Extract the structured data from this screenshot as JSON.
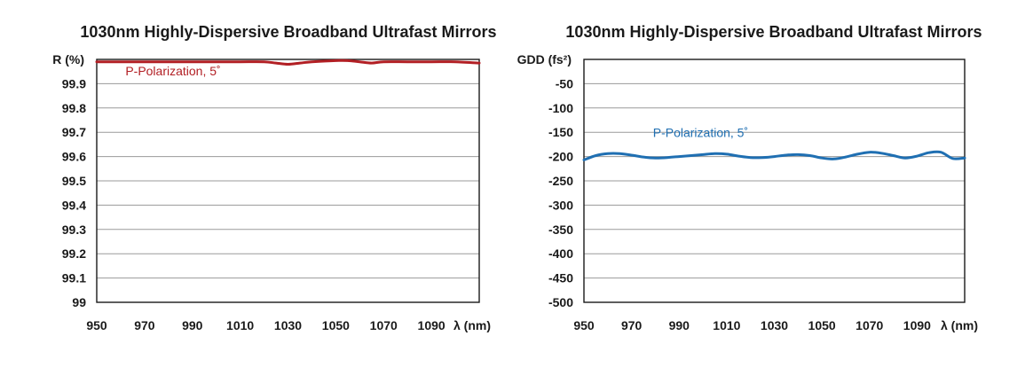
{
  "chart_data": [
    {
      "type": "line",
      "title": "1030nm Highly-Dispersive Broadband Ultrafast Mirrors",
      "ylabel": "R (%)",
      "xlabel": "λ (nm)",
      "xlim": [
        950,
        1110
      ],
      "ylim": [
        99,
        100
      ],
      "x_ticks": [
        "950",
        "970",
        "990",
        "1010",
        "1030",
        "1050",
        "1070",
        "1090"
      ],
      "y_ticks": [
        "99.9",
        "99.8",
        "99.7",
        "99.6",
        "99.5",
        "99.4",
        "99.3",
        "99.2",
        "99.1",
        "99"
      ],
      "grid": "horizontal",
      "series_color": "#b21f24",
      "series": [
        {
          "name": "P-Polarization, 5˚",
          "x": [
            950,
            960,
            970,
            980,
            990,
            1000,
            1010,
            1020,
            1025,
            1030,
            1035,
            1040,
            1050,
            1055,
            1060,
            1065,
            1070,
            1080,
            1090,
            1100,
            1110
          ],
          "y": [
            99.99,
            99.99,
            99.99,
            99.99,
            99.99,
            99.99,
            99.99,
            99.99,
            99.985,
            99.98,
            99.985,
            99.99,
            99.995,
            99.995,
            99.99,
            99.985,
            99.99,
            99.99,
            99.99,
            99.99,
            99.985
          ]
        }
      ]
    },
    {
      "type": "line",
      "title": "1030nm Highly-Dispersive Broadband Ultrafast Mirrors",
      "ylabel": "GDD (fs²)",
      "xlabel": "λ (nm)",
      "xlim": [
        950,
        1110
      ],
      "ylim": [
        -500,
        0
      ],
      "x_ticks": [
        "950",
        "970",
        "990",
        "1010",
        "1030",
        "1050",
        "1070",
        "1090"
      ],
      "y_ticks": [
        "-50",
        "-100",
        "-150",
        "-200",
        "-250",
        "-300",
        "-350",
        "-400",
        "-450",
        "-500"
      ],
      "grid": "horizontal",
      "series_color": "#1f6fb2",
      "series": [
        {
          "name": "P-Polarization, 5˚",
          "x": [
            950,
            955,
            960,
            965,
            970,
            975,
            980,
            985,
            990,
            995,
            1000,
            1005,
            1010,
            1015,
            1020,
            1025,
            1030,
            1035,
            1040,
            1045,
            1050,
            1055,
            1060,
            1065,
            1070,
            1075,
            1080,
            1085,
            1090,
            1095,
            1100,
            1105,
            1110
          ],
          "y": [
            -207,
            -198,
            -194,
            -194,
            -197,
            -201,
            -203,
            -202,
            -200,
            -198,
            -196,
            -194,
            -195,
            -199,
            -202,
            -202,
            -200,
            -197,
            -196,
            -198,
            -203,
            -205,
            -201,
            -195,
            -191,
            -193,
            -198,
            -203,
            -199,
            -192,
            -191,
            -204,
            -203
          ]
        }
      ]
    }
  ]
}
